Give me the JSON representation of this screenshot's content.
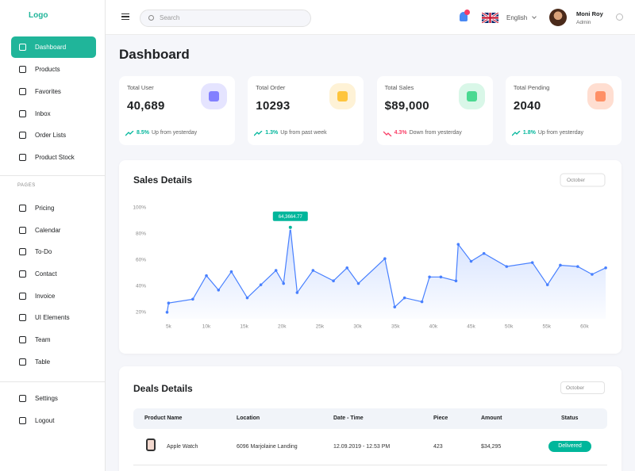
{
  "sidebar": {
    "logo": "Logo",
    "main_menu": [
      "Dashboard",
      "Products",
      "Favorites",
      "Inbox",
      "Order Lists",
      "Product Stock"
    ],
    "section_title": "PAGES",
    "pages_menu": [
      "Pricing",
      "Calendar",
      "To-Do",
      "Contact",
      "Invoice",
      "UI Elements",
      "Team",
      "Table"
    ],
    "bottom_menu": [
      "Settings",
      "Logout"
    ]
  },
  "topbar": {
    "search_placeholder": "Search",
    "language": "English",
    "user_name": "Moni Roy",
    "user_role": "Admin"
  },
  "page_title": "Dashboard",
  "cards": [
    {
      "label": "Total User",
      "value": "40,689",
      "trend_value": "8.5%",
      "trend_text": "Up from yesterday",
      "trend": "up",
      "icon_bg": "#e5e4ff",
      "icon_color": "#8280ff"
    },
    {
      "label": "Total Order",
      "value": "10293",
      "trend_value": "1.3%",
      "trend_text": "Up from past week",
      "trend": "up",
      "icon_bg": "#fef2d6",
      "icon_color": "#fec53d"
    },
    {
      "label": "Total Sales",
      "value": "$89,000",
      "trend_value": "4.3%",
      "trend_text": "Down from yesterday",
      "trend": "down",
      "icon_bg": "#d9f7e8",
      "icon_color": "#4ad991"
    },
    {
      "label": "Total Pending",
      "value": "2040",
      "trend_value": "1.8%",
      "trend_text": "Up from yesterday",
      "trend": "up",
      "icon_bg": "#ffded1",
      "icon_color": "#ff9066"
    }
  ],
  "chart_data": {
    "type": "line",
    "title": "Sales Details",
    "filter": "October",
    "x": [
      4800,
      5000,
      8200,
      10000,
      11600,
      13300,
      15400,
      17200,
      19200,
      20200,
      21100,
      22000,
      24100,
      26800,
      28600,
      30100,
      33600,
      34900,
      36200,
      38500,
      39500,
      41000,
      43000,
      43300,
      45000,
      46700,
      49700,
      53100,
      55100,
      56800,
      59100,
      61000,
      62800
    ],
    "series": [
      {
        "name": "Sales",
        "color": "#4880ff",
        "values": [
          20,
          27,
          30,
          48,
          37,
          51,
          31,
          41,
          52,
          42,
          85,
          35,
          52,
          44,
          54,
          42,
          61,
          24,
          31,
          28,
          47,
          47,
          44,
          72,
          59,
          65,
          55,
          58,
          41,
          56,
          55,
          49,
          54
        ]
      }
    ],
    "annotation": {
      "index": 10,
      "label": "64,3664.77",
      "color": "#00b69b"
    },
    "xlim": [
      3700,
      63000
    ],
    "xticks": [
      {
        "value": 5000,
        "label": "5k"
      },
      {
        "value": 10000,
        "label": "10k"
      },
      {
        "value": 15000,
        "label": "15k"
      },
      {
        "value": 20000,
        "label": "20k"
      },
      {
        "value": 25000,
        "label": "25k"
      },
      {
        "value": 30000,
        "label": "30k"
      },
      {
        "value": 35000,
        "label": "35k"
      },
      {
        "value": 40000,
        "label": "40k"
      },
      {
        "value": 45000,
        "label": "45k"
      },
      {
        "value": 50000,
        "label": "50k"
      },
      {
        "value": 55000,
        "label": "55k"
      },
      {
        "value": 60000,
        "label": "60k"
      }
    ],
    "ylim": [
      15,
      100
    ],
    "yticks": [
      {
        "value": 20,
        "label": "20%"
      },
      {
        "value": 40,
        "label": "40%"
      },
      {
        "value": 60,
        "label": "60%"
      },
      {
        "value": 80,
        "label": "80%"
      },
      {
        "value": 100,
        "label": "100%"
      }
    ],
    "grid": false
  },
  "deals": {
    "title": "Deals Details",
    "filter": "October",
    "columns": [
      "Product Name",
      "Location",
      "Date - Time",
      "Piece",
      "Amount",
      "Status"
    ],
    "rows": [
      [
        "Apple Watch",
        "6096 Marjolaine Landing",
        "12.09.2019 - 12.53 PM",
        "423",
        "$34,295",
        "Delivered"
      ]
    ]
  }
}
